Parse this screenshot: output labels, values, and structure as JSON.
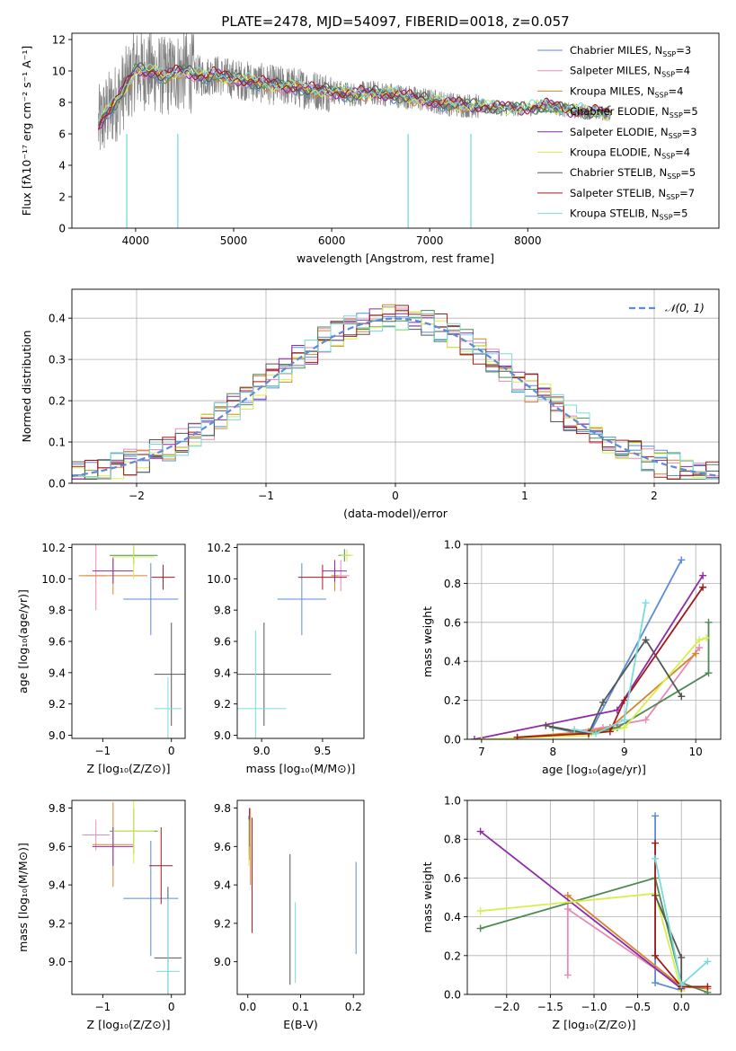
{
  "figure_title": "PLATE=2478, MJD=54097, FIBERID=0018, z=0.057",
  "colors": {
    "chabrier_miles": "#5b8bd9",
    "salpeter_miles": "#e68ab8",
    "kroupa_miles": "#d9822b",
    "chabrier_elodie": "#4e8a55",
    "salpeter_elodie": "#8e2aa8",
    "kroupa_elodie": "#d4ef4e",
    "chabrier_stelib": "#555555",
    "salpeter_stelib": "#a31a1a",
    "kroupa_stelib": "#7adbdb",
    "data": "#808080",
    "normal": "#5b8bd9"
  },
  "chart_data": [
    {
      "type": "line",
      "xlabel": "wavelength [Angstrom, rest frame]",
      "ylabel": "Flux [fλ10⁻¹⁷ erg cm⁻² s⁻¹ A⁻¹]",
      "xlim": [
        3350,
        9950
      ],
      "ylim": [
        0,
        12.4
      ],
      "xticks": [
        4000,
        5000,
        6000,
        7000,
        8000
      ],
      "yticks": [
        0,
        2,
        4,
        6,
        8,
        10,
        12
      ],
      "legend_position": "top-right",
      "legend": [
        {
          "model": "Chabrier MILES",
          "n": "3",
          "color_key": "chabrier_miles"
        },
        {
          "model": "Salpeter MILES",
          "n": "4",
          "color_key": "salpeter_miles"
        },
        {
          "model": "Kroupa MILES",
          "n": "4",
          "color_key": "kroupa_miles"
        },
        {
          "model": "Chabrier ELODIE",
          "n": "5",
          "color_key": "chabrier_elodie"
        },
        {
          "model": "Salpeter ELODIE",
          "n": "3",
          "color_key": "salpeter_elodie"
        },
        {
          "model": "Kroupa ELODIE",
          "n": "4",
          "color_key": "kroupa_elodie"
        },
        {
          "model": "Chabrier STELIB",
          "n": "5",
          "color_key": "chabrier_stelib"
        },
        {
          "model": "Salpeter STELIB",
          "n": "7",
          "color_key": "salpeter_stelib"
        },
        {
          "model": "Kroupa STELIB",
          "n": "5",
          "color_key": "kroupa_stelib"
        }
      ],
      "model_continuum": {
        "x": [
          3620,
          3700,
          3800,
          3900,
          3950,
          4000,
          4100,
          4200,
          4300,
          4400,
          4500,
          4600,
          4700,
          4800,
          4900,
          5000,
          5200,
          5400,
          5600,
          5800,
          6000,
          6200,
          6400,
          6600,
          6800,
          7000,
          7200,
          7400,
          7600,
          7800,
          8000,
          8200,
          8400,
          8600,
          8800
        ],
        "y": [
          6.5,
          7.3,
          8.0,
          9.0,
          9.5,
          10.1,
          10.0,
          9.9,
          9.6,
          9.9,
          10.0,
          9.8,
          9.6,
          9.8,
          9.6,
          9.5,
          9.3,
          9.1,
          9.0,
          8.8,
          8.7,
          8.5,
          8.6,
          8.5,
          8.3,
          8.1,
          7.9,
          7.8,
          7.7,
          7.6,
          7.6,
          7.8,
          7.5,
          7.4,
          7.3
        ]
      }
    },
    {
      "type": "histogram",
      "xlabel": "(data-model)/error",
      "ylabel": "Normed distribution",
      "xlim": [
        -2.5,
        2.5
      ],
      "ylim": [
        0,
        0.47
      ],
      "xticks": [
        -2,
        -1,
        0,
        1,
        2
      ],
      "yticks": [
        0.0,
        0.1,
        0.2,
        0.3,
        0.4
      ],
      "grid": true,
      "legend_position": "top-right",
      "legend_label": "𝒩(0, 1)",
      "bin_width": 0.1,
      "bin_start": -2.5,
      "series_color_keys": [
        "chabrier_miles",
        "salpeter_miles",
        "kroupa_miles",
        "chabrier_elodie",
        "salpeter_elodie",
        "kroupa_elodie",
        "chabrier_stelib",
        "salpeter_stelib",
        "kroupa_stelib"
      ]
    },
    {
      "type": "scatter",
      "xlabel": "Z [log₁₀(Z/Z⊙)]",
      "ylabel": "age  [log₁₀(age/yr)]",
      "xlim": [
        -1.45,
        0.2
      ],
      "ylim": [
        8.98,
        10.22
      ],
      "xticks": [
        -1,
        0
      ],
      "yticks": [
        9.0,
        9.2,
        9.4,
        9.6,
        9.8,
        10.0,
        10.2
      ],
      "points": [
        {
          "x": -0.3,
          "y": 9.87,
          "xerr": 0.4,
          "yerr": 0.23,
          "color_key": "chabrier_miles"
        },
        {
          "x": -1.1,
          "y": 10.02,
          "xerr": 0.15,
          "yerr": 0.22,
          "color_key": "salpeter_miles"
        },
        {
          "x": -0.85,
          "y": 10.02,
          "xerr": 0.5,
          "yerr": 0.12,
          "color_key": "kroupa_miles"
        },
        {
          "x": -0.55,
          "y": 10.15,
          "xerr": 0.35,
          "yerr": 0.06,
          "color_key": "chabrier_elodie"
        },
        {
          "x": -0.85,
          "y": 10.05,
          "xerr": 0.3,
          "yerr": 0.08,
          "color_key": "salpeter_elodie"
        },
        {
          "x": -0.55,
          "y": 10.14,
          "xerr": 0.3,
          "yerr": 0.14,
          "color_key": "kroupa_elodie"
        },
        {
          "x": 0.0,
          "y": 9.39,
          "xerr": 0.25,
          "yerr": 0.33,
          "color_key": "chabrier_stelib"
        },
        {
          "x": -0.12,
          "y": 10.01,
          "xerr": 0.17,
          "yerr": 0.08,
          "color_key": "salpeter_stelib"
        },
        {
          "x": -0.05,
          "y": 9.17,
          "xerr": 0.2,
          "yerr": 0.2,
          "color_key": "kroupa_stelib"
        }
      ]
    },
    {
      "type": "scatter",
      "xlabel": "mass [log₁₀(M/M⊙)]",
      "ylabel": "",
      "xlim": [
        8.8,
        9.84
      ],
      "ylim": [
        8.98,
        10.22
      ],
      "xticks": [
        9.0,
        9.5
      ],
      "yticks": [
        9.0,
        9.2,
        9.4,
        9.6,
        9.8,
        10.0,
        10.2
      ],
      "points": [
        {
          "x": 9.33,
          "y": 9.87,
          "xerr": 0.2,
          "yerr": 0.23,
          "color_key": "chabrier_miles"
        },
        {
          "x": 9.65,
          "y": 10.02,
          "xerr": 0.07,
          "yerr": 0.1,
          "color_key": "salpeter_miles"
        },
        {
          "x": 9.6,
          "y": 10.02,
          "xerr": 0.03,
          "yerr": 0.1,
          "color_key": "kroupa_miles"
        },
        {
          "x": 9.68,
          "y": 10.15,
          "xerr": 0.05,
          "yerr": 0.04,
          "color_key": "chabrier_elodie"
        },
        {
          "x": 9.6,
          "y": 10.05,
          "xerr": 0.1,
          "yerr": 0.07,
          "color_key": "salpeter_elodie"
        },
        {
          "x": 9.7,
          "y": 10.15,
          "xerr": 0.05,
          "yerr": 0.04,
          "color_key": "kroupa_elodie"
        },
        {
          "x": 9.02,
          "y": 9.39,
          "xerr": 0.55,
          "yerr": 0.33,
          "color_key": "chabrier_stelib"
        },
        {
          "x": 9.5,
          "y": 10.01,
          "xerr": 0.2,
          "yerr": 0.08,
          "color_key": "salpeter_stelib"
        },
        {
          "x": 8.95,
          "y": 9.17,
          "xerr": 0.25,
          "yerr": 0.5,
          "color_key": "kroupa_stelib"
        }
      ]
    },
    {
      "type": "line",
      "xlabel": "age  [log₁₀(age/yr)]",
      "ylabel": "mass weight",
      "xlim": [
        6.8,
        10.35
      ],
      "ylim": [
        0,
        1.0
      ],
      "xticks": [
        7,
        8,
        9,
        10
      ],
      "yticks": [
        0.0,
        0.2,
        0.4,
        0.6,
        0.8,
        1.0
      ],
      "grid": true,
      "series": [
        {
          "color_key": "chabrier_miles",
          "x": [
            8.0,
            8.5,
            9.8
          ],
          "y": [
            0.06,
            0.02,
            0.92
          ]
        },
        {
          "color_key": "salpeter_miles",
          "x": [
            8.3,
            8.7,
            9.3,
            10.05
          ],
          "y": [
            0.04,
            0.06,
            0.1,
            0.47
          ]
        },
        {
          "color_key": "kroupa_miles",
          "x": [
            7.5,
            8.5,
            8.8,
            10.0
          ],
          "y": [
            0.01,
            0.04,
            0.06,
            0.44
          ]
        },
        {
          "color_key": "chabrier_elodie",
          "x": [
            8.0,
            8.5,
            8.9,
            10.18,
            10.18
          ],
          "y": [
            0.06,
            0.03,
            0.06,
            0.34,
            0.6
          ]
        },
        {
          "color_key": "salpeter_elodie",
          "x": [
            6.9,
            8.9,
            10.1
          ],
          "y": [
            0.0,
            0.15,
            0.84
          ]
        },
        {
          "color_key": "kroupa_elodie",
          "x": [
            7.0,
            8.5,
            9.0,
            10.05,
            10.15
          ],
          "y": [
            0.0,
            0.02,
            0.06,
            0.51,
            0.52
          ]
        },
        {
          "color_key": "chabrier_stelib",
          "x": [
            7.9,
            8.5,
            8.7,
            9.3,
            9.8
          ],
          "y": [
            0.07,
            0.03,
            0.19,
            0.51,
            0.22
          ]
        },
        {
          "color_key": "salpeter_stelib",
          "x": [
            7.5,
            8.5,
            8.8,
            9.0,
            10.1
          ],
          "y": [
            0.01,
            0.03,
            0.04,
            0.2,
            0.78
          ]
        },
        {
          "color_key": "kroupa_stelib",
          "x": [
            8.3,
            8.6,
            9.0,
            9.3
          ],
          "y": [
            0.05,
            0.03,
            0.1,
            0.7
          ]
        }
      ]
    },
    {
      "type": "scatter",
      "xlabel": "Z [log₁₀(Z/Z⊙)]",
      "ylabel": "mass [log₁₀(M/M⊙)]",
      "xlim": [
        -1.45,
        0.2
      ],
      "ylim": [
        8.83,
        9.84
      ],
      "xticks": [
        -1,
        0
      ],
      "yticks": [
        9.0,
        9.2,
        9.4,
        9.6,
        9.8
      ],
      "points": [
        {
          "x": -0.3,
          "y": 9.33,
          "xerr": 0.4,
          "yerr": 0.3,
          "color_key": "chabrier_miles"
        },
        {
          "x": -1.1,
          "y": 9.66,
          "xerr": 0.2,
          "yerr": 0.08,
          "color_key": "salpeter_miles"
        },
        {
          "x": -0.85,
          "y": 9.61,
          "xerr": 0.3,
          "yerr": 0.22,
          "color_key": "kroupa_miles"
        },
        {
          "x": -0.55,
          "y": 9.68,
          "xerr": 0.35,
          "yerr": 0.12,
          "color_key": "chabrier_elodie"
        },
        {
          "x": -0.85,
          "y": 9.6,
          "xerr": 0.3,
          "yerr": 0.1,
          "color_key": "salpeter_elodie"
        },
        {
          "x": -0.55,
          "y": 9.68,
          "xerr": 0.3,
          "yerr": 0.17,
          "color_key": "kroupa_elodie"
        },
        {
          "x": -0.05,
          "y": 9.02,
          "xerr": 0.2,
          "yerr": 0.37,
          "color_key": "chabrier_stelib"
        },
        {
          "x": -0.15,
          "y": 9.5,
          "xerr": 0.17,
          "yerr": 0.2,
          "color_key": "salpeter_stelib"
        },
        {
          "x": -0.05,
          "y": 8.95,
          "xerr": 0.17,
          "yerr": 0.38,
          "color_key": "kroupa_stelib"
        }
      ]
    },
    {
      "type": "scatter",
      "xlabel": "E(B-V)",
      "ylabel": "",
      "xlim": [
        -0.02,
        0.22
      ],
      "ylim": [
        8.83,
        9.84
      ],
      "xticks": [
        0.0,
        0.1,
        0.2
      ],
      "yticks": [
        9.0,
        9.2,
        9.4,
        9.6,
        9.8
      ],
      "points": [
        {
          "x": 0.205,
          "y": 9.28,
          "xerr": 0.0,
          "yerr": 0.24,
          "color_key": "chabrier_miles"
        },
        {
          "x": 0.003,
          "y": 9.65,
          "xerr": 0.0,
          "yerr": 0.12,
          "color_key": "salpeter_miles"
        },
        {
          "x": 0.005,
          "y": 9.6,
          "xerr": 0.0,
          "yerr": 0.2,
          "color_key": "kroupa_miles"
        },
        {
          "x": 0.002,
          "y": 9.66,
          "xerr": 0.0,
          "yerr": 0.1,
          "color_key": "chabrier_elodie"
        },
        {
          "x": 0.003,
          "y": 9.7,
          "xerr": 0.0,
          "yerr": 0.1,
          "color_key": "salpeter_elodie"
        },
        {
          "x": 0.002,
          "y": 9.62,
          "xerr": 0.0,
          "yerr": 0.12,
          "color_key": "kroupa_elodie"
        },
        {
          "x": 0.08,
          "y": 9.22,
          "xerr": 0.0,
          "yerr": 0.34,
          "color_key": "chabrier_stelib"
        },
        {
          "x": 0.008,
          "y": 9.45,
          "xerr": 0.0,
          "yerr": 0.3,
          "color_key": "salpeter_stelib"
        },
        {
          "x": 0.09,
          "y": 9.1,
          "xerr": 0.0,
          "yerr": 0.21,
          "color_key": "kroupa_stelib"
        }
      ]
    },
    {
      "type": "line",
      "xlabel": "Z [log₁₀(Z/Z⊙)]",
      "ylabel": "mass weight",
      "xlim": [
        -2.45,
        0.45
      ],
      "ylim": [
        0,
        1.0
      ],
      "xticks": [
        -2.0,
        -1.5,
        -1.0,
        -0.5,
        0.0
      ],
      "yticks": [
        0.0,
        0.2,
        0.4,
        0.6,
        0.8,
        1.0
      ],
      "grid": true,
      "series": [
        {
          "color_key": "chabrier_miles",
          "x": [
            -0.3,
            -0.3,
            0.0
          ],
          "y": [
            0.92,
            0.06,
            0.02
          ]
        },
        {
          "color_key": "salpeter_miles",
          "x": [
            -1.3,
            -1.3,
            -1.3,
            0.0
          ],
          "y": [
            0.1,
            0.47,
            0.44,
            0.04
          ]
        },
        {
          "color_key": "kroupa_miles",
          "x": [
            -1.3,
            0.0,
            0.3
          ],
          "y": [
            0.51,
            0.04,
            0.03
          ]
        },
        {
          "color_key": "chabrier_elodie",
          "x": [
            -2.3,
            -0.3,
            0.0,
            0.3
          ],
          "y": [
            0.34,
            0.6,
            0.06,
            0.01
          ]
        },
        {
          "color_key": "salpeter_elodie",
          "x": [
            -2.3,
            0.0
          ],
          "y": [
            0.84,
            0.03
          ]
        },
        {
          "color_key": "kroupa_elodie",
          "x": [
            -2.3,
            -0.3,
            0.0
          ],
          "y": [
            0.43,
            0.52,
            0.02
          ]
        },
        {
          "color_key": "chabrier_stelib",
          "x": [
            -0.3,
            0.0,
            0.0
          ],
          "y": [
            0.51,
            0.19,
            0.03
          ]
        },
        {
          "color_key": "salpeter_stelib",
          "x": [
            -0.3,
            -0.3,
            0.0,
            0.3
          ],
          "y": [
            0.78,
            0.2,
            0.04,
            0.04
          ]
        },
        {
          "color_key": "kroupa_stelib",
          "x": [
            -0.3,
            0.0,
            0.3
          ],
          "y": [
            0.7,
            0.05,
            0.17
          ]
        }
      ]
    }
  ]
}
